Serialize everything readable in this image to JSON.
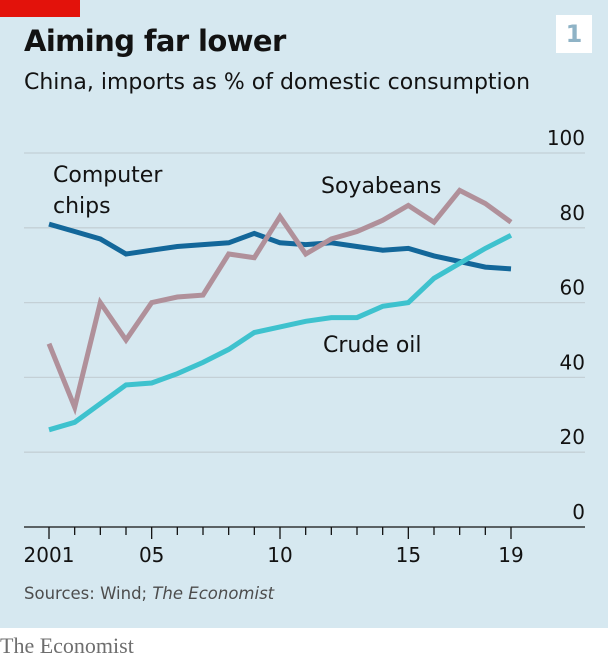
{
  "header": {
    "title": "Aiming far lower",
    "subtitle": "China, imports as % of domestic consumption",
    "chart_number": "1"
  },
  "footer": {
    "source_prefix": "Sources: Wind; ",
    "source_italic": "The Economist",
    "logo_text": "The Economist"
  },
  "colors": {
    "background": "#d6e8f0",
    "brand_red": "#e3120b",
    "computer_chips": "#13679a",
    "soyabeans": "#b0909a",
    "crude_oil": "#3ec2ce",
    "gridline": "#c4d0d6",
    "axis": "#121212"
  },
  "chart_data": {
    "type": "line",
    "title": "Aiming far lower",
    "subtitle": "China, imports as % of domestic consumption",
    "xlabel": "",
    "ylabel": "",
    "xlim": [
      2001,
      2019
    ],
    "ylim": [
      0,
      100
    ],
    "y_ticks": [
      0,
      20,
      40,
      60,
      80,
      100
    ],
    "y_tick_labels": [
      "0",
      "20",
      "40",
      "60",
      "80",
      "100"
    ],
    "x_tick_years": [
      2001,
      2005,
      2010,
      2015,
      2019
    ],
    "x_tick_labels": [
      "2001",
      "05",
      "10",
      "15",
      "19"
    ],
    "grid": true,
    "y_axis_side": "right",
    "x": [
      2001,
      2002,
      2003,
      2004,
      2005,
      2006,
      2007,
      2008,
      2009,
      2010,
      2011,
      2012,
      2013,
      2014,
      2015,
      2016,
      2017,
      2018,
      2019
    ],
    "series": [
      {
        "name": "Computer chips",
        "label_lines": [
          "Computer",
          "chips"
        ],
        "color": "#13679a",
        "values": [
          81,
          79,
          77,
          73,
          74,
          75,
          75.5,
          76,
          78.5,
          76,
          75.5,
          76,
          75,
          74,
          74.5,
          72.5,
          71,
          69.5,
          69
        ]
      },
      {
        "name": "Soyabeans",
        "label_lines": [
          "Soyabeans"
        ],
        "color": "#b0909a",
        "values": [
          49,
          32,
          60,
          50,
          60,
          61.5,
          62,
          73,
          72,
          83,
          73,
          77,
          79,
          82,
          86,
          81.5,
          90,
          86.5,
          81.5
        ]
      },
      {
        "name": "Crude oil",
        "label_lines": [
          "Crude oil"
        ],
        "color": "#3ec2ce",
        "values": [
          26,
          28,
          33,
          38,
          38.5,
          41,
          44,
          47.5,
          52,
          53.5,
          55,
          56,
          56,
          59,
          60,
          66.5,
          70.5,
          74.5,
          78
        ]
      }
    ],
    "annotations": [
      "Computer chips",
      "Soyabeans",
      "Crude oil"
    ]
  }
}
